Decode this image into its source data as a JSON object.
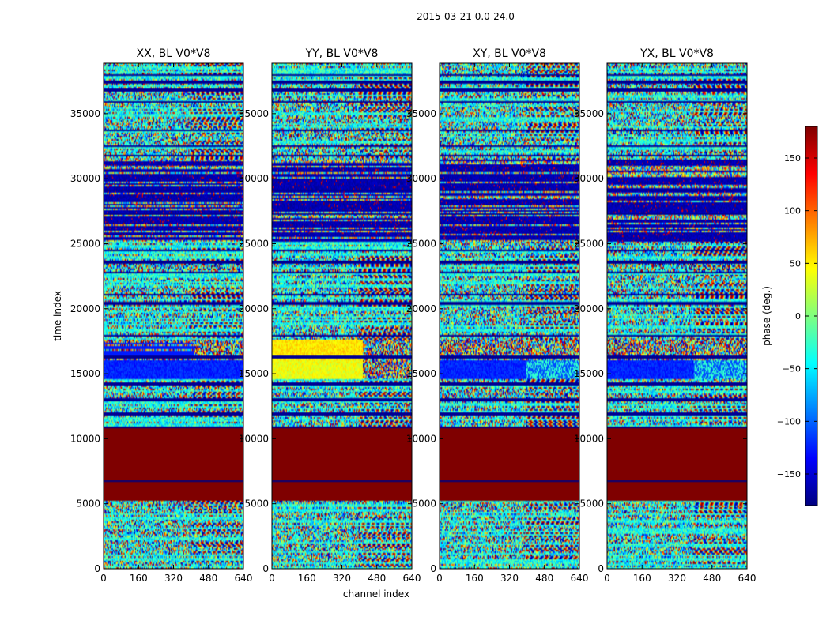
{
  "figure_title": "2015-03-21 0.0-24.0",
  "chart_data": {
    "type": "heatmap",
    "suptitle": "2015-03-21 0.0-24.0",
    "xlabel": "channel index",
    "ylabel": "time index",
    "xlim": [
      0,
      640
    ],
    "ylim": [
      0,
      38880
    ],
    "xticks": [
      0,
      160,
      320,
      480,
      640
    ],
    "yticks": [
      0,
      5000,
      10000,
      15000,
      20000,
      25000,
      30000,
      35000
    ],
    "colorbar": {
      "label": "phase (deg.)",
      "range": [
        -180,
        180
      ],
      "ticks": [
        150,
        100,
        50,
        0,
        -50,
        -100,
        -150
      ],
      "colormap": "jet",
      "colors": [
        "#00007f",
        "#0000ff",
        "#0080ff",
        "#00ffff",
        "#7fff7f",
        "#ffff00",
        "#ff8000",
        "#ff0000",
        "#7f0000"
      ]
    },
    "panels": [
      {
        "title": "XX, BL V0*V8"
      },
      {
        "title": "YY, BL V0*V8"
      },
      {
        "title": "XY, BL V0*V8"
      },
      {
        "title": "YX, BL V0*V8"
      }
    ]
  }
}
